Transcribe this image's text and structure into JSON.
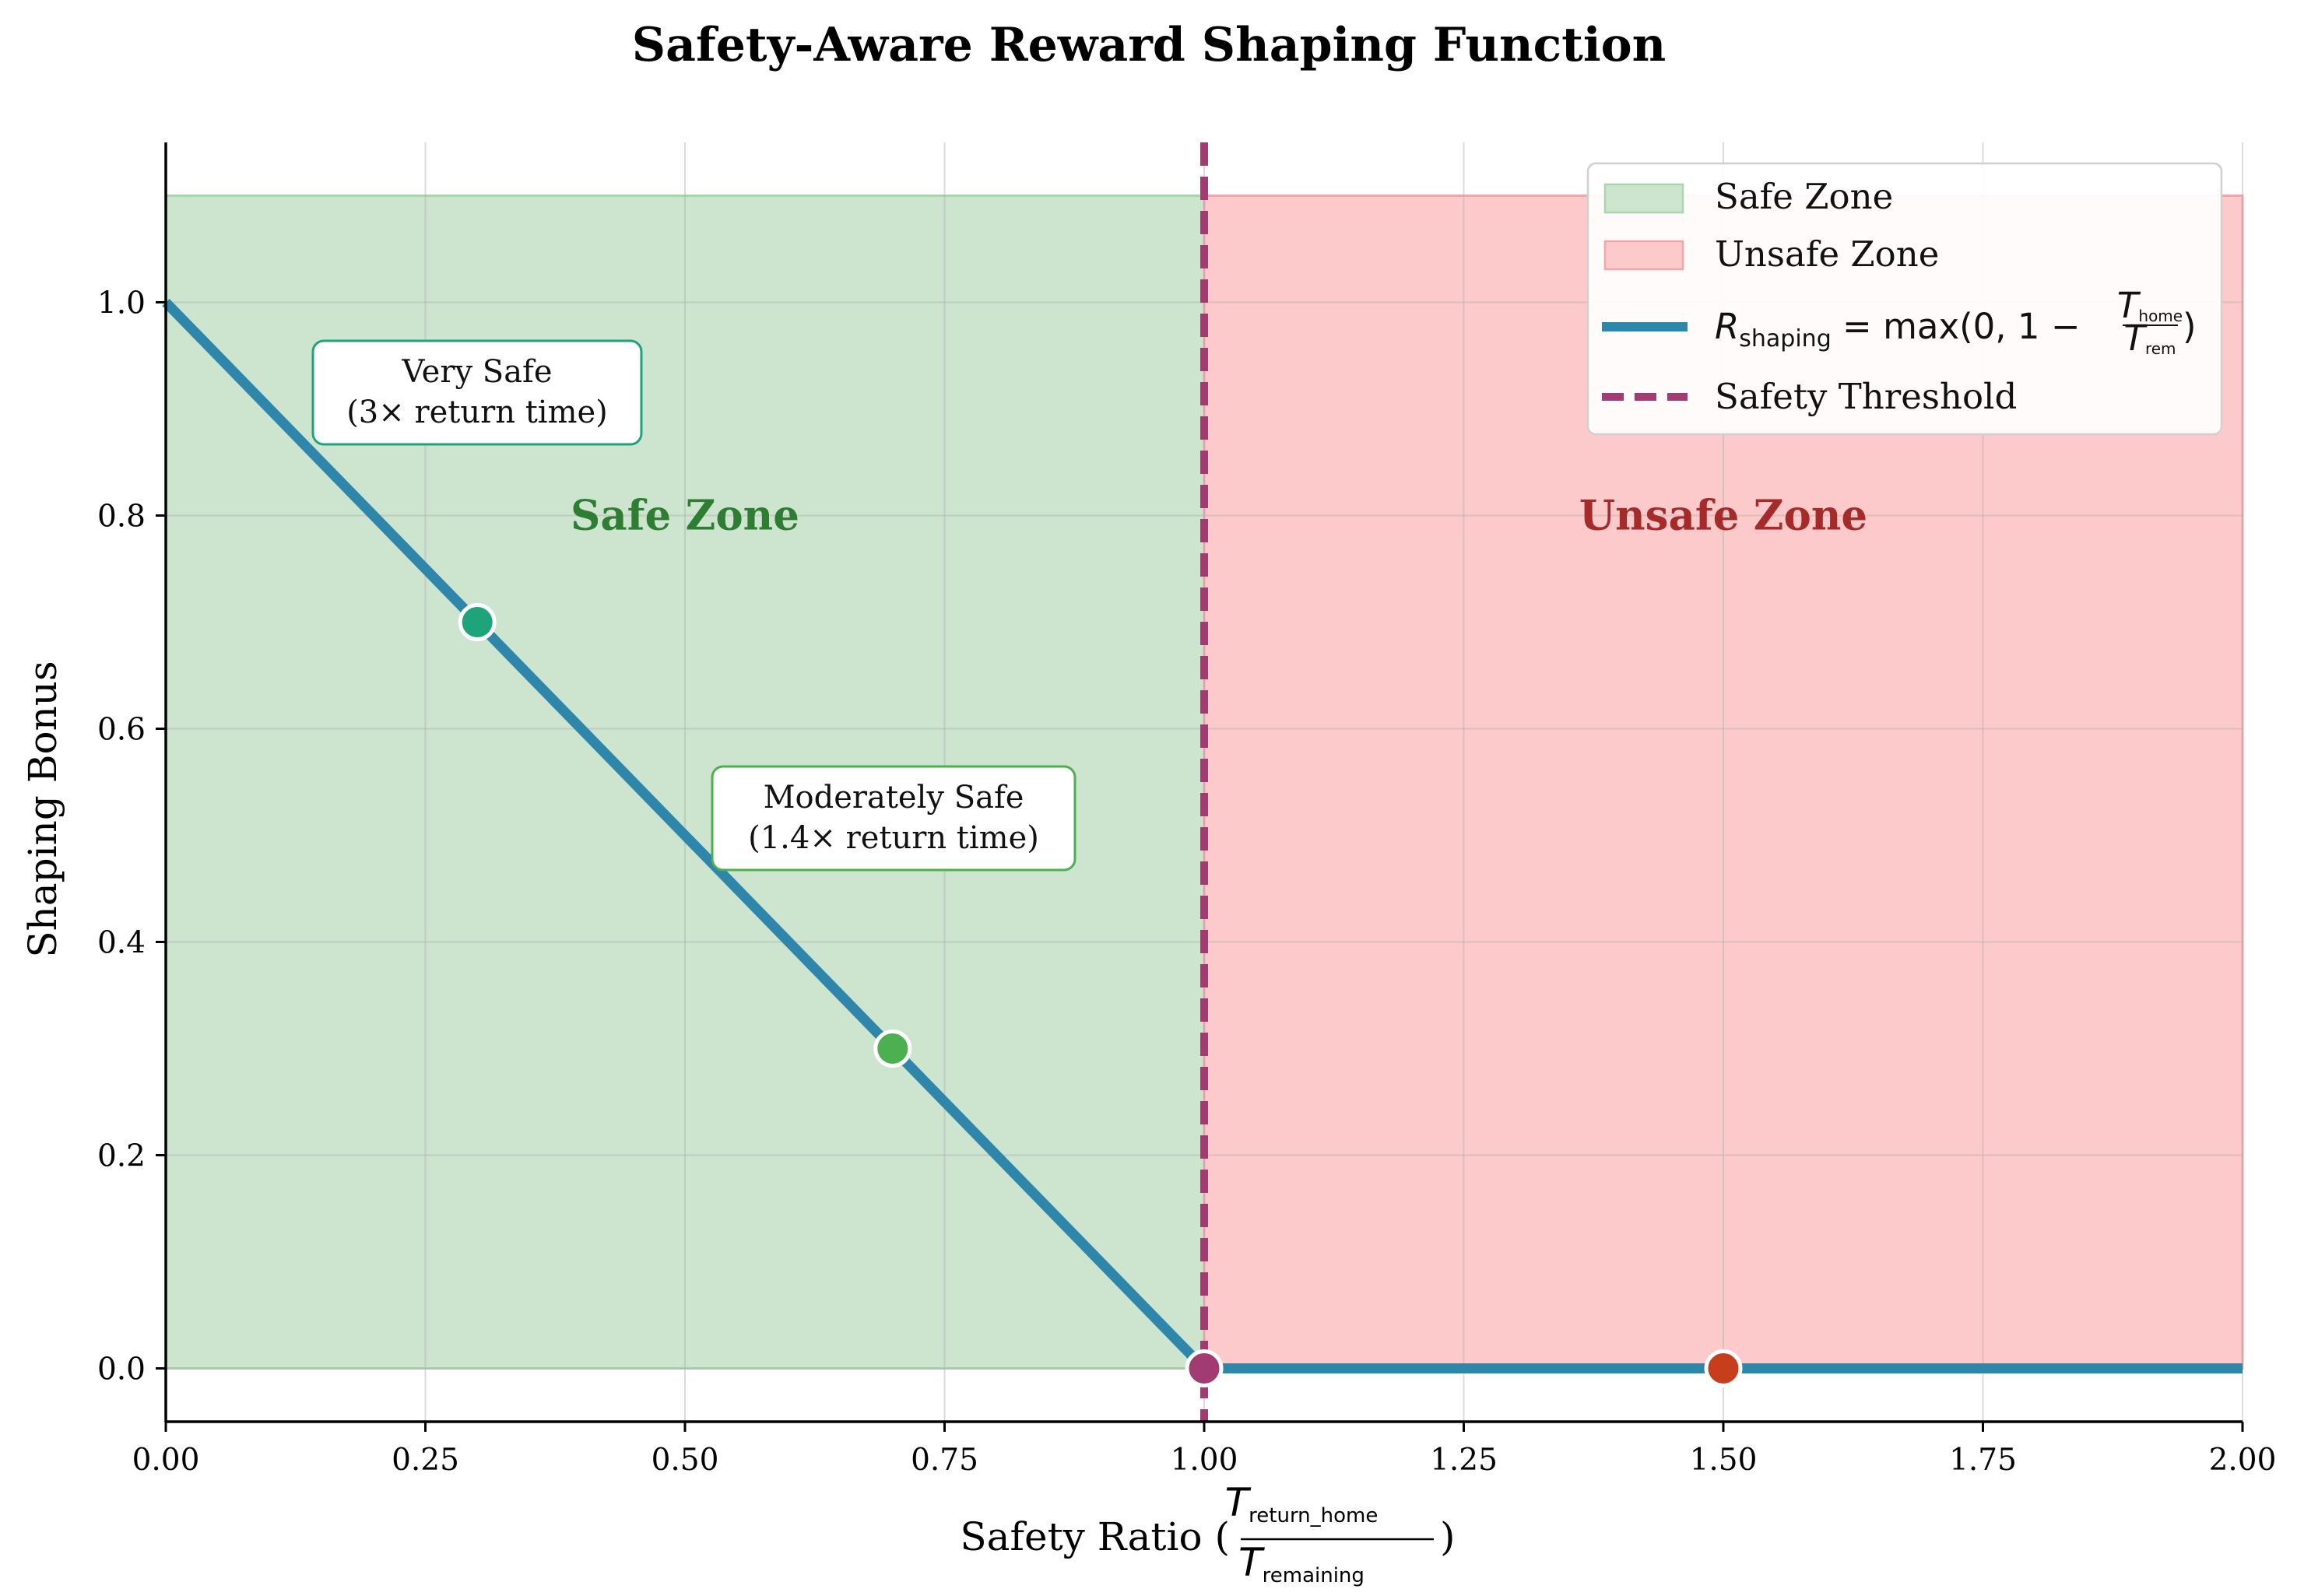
{
  "chart_data": {
    "type": "line",
    "title": "Safety-Aware Reward Shaping Function",
    "xlabel": {
      "prefix": "Safety Ratio (",
      "num_main": "T",
      "num_sub": "return_home",
      "den_main": "T",
      "den_sub": "remaining",
      "suffix": ")"
    },
    "ylabel": "Shaping Bonus",
    "xlim": [
      0,
      2
    ],
    "ylim": [
      -0.05,
      1.15
    ],
    "x_ticks": [
      "0.00",
      "0.25",
      "0.50",
      "0.75",
      "1.00",
      "1.25",
      "1.50",
      "1.75",
      "2.00"
    ],
    "y_ticks": [
      "0.0",
      "0.2",
      "0.4",
      "0.6",
      "0.8",
      "1.0"
    ],
    "grid": true,
    "series": [
      {
        "name_parts": {
          "R": "R",
          "R_sub": "shaping",
          "eq": " = max(0, 1 − ",
          "num": "T",
          "num_sub": "home",
          "den": "T",
          "den_sub": "rem",
          "close": ")"
        },
        "color": "#2e86ab",
        "x": [
          0.0,
          1.0,
          2.0
        ],
        "y": [
          1.0,
          0.0,
          0.0
        ]
      }
    ],
    "points": [
      {
        "x": 0.3,
        "y": 0.7,
        "color": "#1fa37a"
      },
      {
        "x": 0.7,
        "y": 0.3,
        "color": "#4caf50"
      },
      {
        "x": 1.0,
        "y": 0.0,
        "color": "#a23b72"
      },
      {
        "x": 1.5,
        "y": 0.0,
        "color": "#c73e1d"
      }
    ],
    "zones": [
      {
        "name": "Safe Zone",
        "x0": 0.0,
        "x1": 1.0,
        "y0": 0.0,
        "y1": 1.1,
        "fill": "#cde4cf",
        "edge": "#a8d5aa",
        "label": "Safe Zone",
        "label_color": "#2e7d32",
        "label_x": 0.5,
        "label_y": 0.8
      },
      {
        "name": "Unsafe Zone",
        "x0": 1.0,
        "x1": 2.0,
        "y0": 0.0,
        "y1": 1.1,
        "fill": "#fdcacb",
        "edge": "#f5a5a8",
        "label": "Unsafe Zone",
        "label_color": "#a52a2a",
        "label_x": 1.5,
        "label_y": 0.8
      }
    ],
    "threshold": {
      "name": "Safety Threshold",
      "x": 1.0,
      "color": "#a23b72"
    },
    "annotations": [
      {
        "line1": "Very Safe",
        "line2": "(3× return time)",
        "x": 0.3,
        "y": 0.92,
        "border": "#1fa37a"
      },
      {
        "line1": "Moderately Safe",
        "line2": "(1.4× return time)",
        "x": 0.7,
        "y": 0.52,
        "border": "#4caf50"
      }
    ],
    "legend": {
      "position": "upper right",
      "entries": [
        "Safe Zone",
        "Unsafe Zone",
        "series",
        "Safety Threshold"
      ]
    }
  }
}
